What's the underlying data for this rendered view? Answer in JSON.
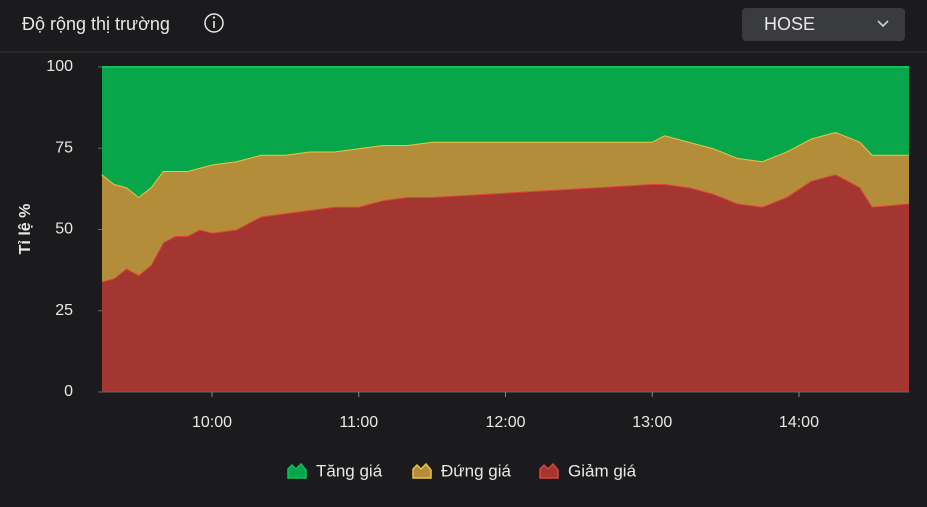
{
  "header": {
    "title": "Độ rộng thị trường",
    "exchange": "HOSE"
  },
  "chart_data": {
    "type": "stacked-area",
    "y_label": "Tỉ lệ %",
    "x": [
      "09:15",
      "09:20",
      "09:25",
      "09:30",
      "09:35",
      "09:40",
      "09:45",
      "09:50",
      "09:55",
      "10:00",
      "10:10",
      "10:20",
      "10:30",
      "10:40",
      "10:50",
      "11:00",
      "11:10",
      "11:20",
      "11:30",
      "13:00",
      "13:05",
      "13:15",
      "13:25",
      "13:35",
      "13:45",
      "13:55",
      "14:05",
      "14:15",
      "14:25",
      "14:30",
      "14:45"
    ],
    "xlim": [
      "09:15",
      "14:45"
    ],
    "xticks": [
      "10:00",
      "11:00",
      "12:00",
      "13:00",
      "14:00"
    ],
    "ylim": [
      0,
      100
    ],
    "yticks": [
      0,
      25,
      50,
      75,
      100
    ],
    "series": [
      {
        "name": "Tăng giá",
        "color": "#07a64b",
        "line_color": "#0bc45a",
        "values": [
          33,
          36,
          37,
          40,
          37,
          32,
          32,
          32,
          31,
          30,
          29,
          27,
          27,
          26,
          26,
          25,
          24,
          24,
          23,
          23,
          21,
          23,
          25,
          28,
          29,
          26,
          22,
          20,
          23,
          27,
          27
        ]
      },
      {
        "name": "Đứng giá",
        "color": "#b48d3a",
        "line_color": "#e9c544",
        "values": [
          33,
          29,
          25,
          24,
          24,
          22,
          20,
          20,
          19,
          21,
          21,
          19,
          18,
          18,
          17,
          18,
          17,
          16,
          17,
          13,
          15,
          14,
          14,
          14,
          14,
          14,
          13,
          13,
          14,
          16,
          15
        ]
      },
      {
        "name": "Giảm giá",
        "color": "#a33630",
        "line_color": "#e0423a",
        "values": [
          34,
          35,
          38,
          36,
          39,
          46,
          48,
          48,
          50,
          49,
          50,
          54,
          55,
          56,
          57,
          57,
          59,
          60,
          60,
          64,
          64,
          63,
          61,
          58,
          57,
          60,
          65,
          67,
          63,
          57,
          58
        ]
      }
    ]
  }
}
